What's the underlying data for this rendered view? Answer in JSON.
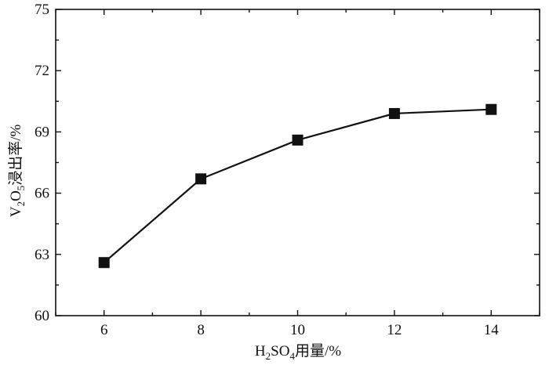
{
  "chart_data": {
    "type": "line",
    "x": [
      6,
      8,
      10,
      12,
      14
    ],
    "series": [
      {
        "values": [
          62.6,
          66.7,
          68.6,
          69.9,
          70.1
        ]
      }
    ],
    "xlabel": {
      "main": "H",
      "sub1": "2",
      "mid": "SO",
      "sub2": "4",
      "rest": "用量/%"
    },
    "ylabel": {
      "main": "V",
      "sub1": "2",
      "mid": "O",
      "sub2": "5",
      "rest": "浸出率/%"
    },
    "xlim": [
      5,
      15
    ],
    "ylim": [
      60,
      75
    ],
    "xticks": [
      6,
      8,
      10,
      12,
      14
    ],
    "yticks": [
      60,
      63,
      66,
      69,
      72,
      75
    ],
    "ytick_labels": [
      "60",
      "63",
      "66",
      "69",
      "72",
      "75"
    ],
    "grid": false,
    "marker": "square",
    "color": "#111111"
  }
}
